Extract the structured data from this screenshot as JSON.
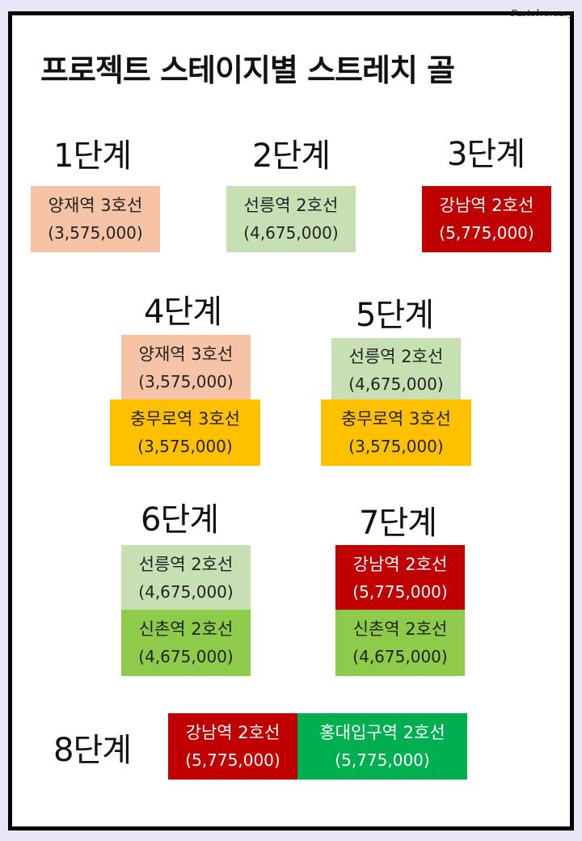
{
  "brand": "Pastelversary",
  "title": "프로젝트 스테이지별 스트레치 골",
  "colors": {
    "peach": "#f6c3a7",
    "sage": "#c6e0b4",
    "red": "#c00000",
    "amber": "#ffc000",
    "lime": "#8fcb4b",
    "green": "#00b050"
  },
  "stages": {
    "s1": {
      "label": "1단계",
      "items": [
        {
          "station": "양재역 3호선",
          "amount": "(3,575,000)"
        }
      ]
    },
    "s2": {
      "label": "2단계",
      "items": [
        {
          "station": "선릉역 2호선",
          "amount": "(4,675,000)"
        }
      ]
    },
    "s3": {
      "label": "3단계",
      "items": [
        {
          "station": "강남역 2호선",
          "amount": "(5,775,000)"
        }
      ]
    },
    "s4": {
      "label": "4단계",
      "items": [
        {
          "station": "양재역 3호선",
          "amount": "(3,575,000)"
        },
        {
          "station": "충무로역 3호선",
          "amount": "(3,575,000)"
        }
      ]
    },
    "s5": {
      "label": "5단계",
      "items": [
        {
          "station": "선릉역 2호선",
          "amount": "(4,675,000)"
        },
        {
          "station": "충무로역 3호선",
          "amount": "(3,575,000)"
        }
      ]
    },
    "s6": {
      "label": "6단계",
      "items": [
        {
          "station": "선릉역 2호선",
          "amount": "(4,675,000)"
        },
        {
          "station": "신촌역 2호선",
          "amount": "(4,675,000)"
        }
      ]
    },
    "s7": {
      "label": "7단계",
      "items": [
        {
          "station": "강남역 2호선",
          "amount": "(5,775,000)"
        },
        {
          "station": "신촌역 2호선",
          "amount": "(4,675,000)"
        }
      ]
    },
    "s8": {
      "label": "8단계",
      "items": [
        {
          "station": "강남역 2호선",
          "amount": "(5,775,000)"
        },
        {
          "station": "홍대입구역 2호선",
          "amount": "(5,775,000)"
        }
      ]
    }
  }
}
